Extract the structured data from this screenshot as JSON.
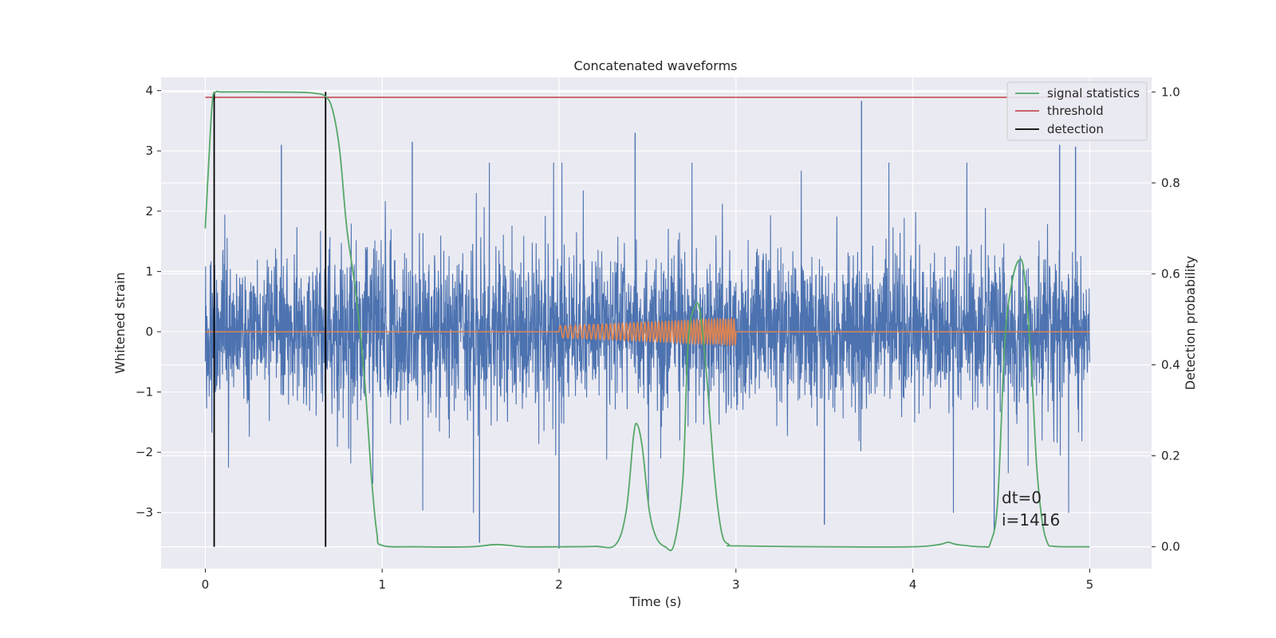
{
  "chart_data": {
    "type": "line",
    "title": "Concatenated waveforms",
    "xlabel": "Time (s)",
    "ylabel": "Whitened strain",
    "y2label": "Detection probability",
    "xlim": [
      -0.25,
      5.35
    ],
    "ylim": [
      -3.93,
      4.22
    ],
    "y2lim": [
      -0.048,
      1.032
    ],
    "xticks": [
      "0",
      "1",
      "2",
      "3",
      "4",
      "5"
    ],
    "xtick_values": [
      0,
      1,
      2,
      3,
      4,
      5
    ],
    "yticks": [
      "−3",
      "−2",
      "−1",
      "0",
      "1",
      "2",
      "3",
      "4"
    ],
    "ytick_values": [
      -3,
      -2,
      -1,
      0,
      1,
      2,
      3,
      4
    ],
    "y2ticks": [
      "0.0",
      "0.2",
      "0.4",
      "0.6",
      "0.8",
      "1.0"
    ],
    "y2tick_values": [
      0.0,
      0.2,
      0.4,
      0.6,
      0.8,
      1.0
    ],
    "grid": true,
    "legend_position": "top-right",
    "colors": {
      "strain": "#4c72b0",
      "template": "#dd8452",
      "signal_statistics": "#55a868",
      "threshold": "#c44e52",
      "detection": "#000000",
      "background": "#eaeaf2",
      "grid": "#ffffff"
    },
    "series": [
      {
        "name": "",
        "role": "strain",
        "axis": "left",
        "description_range": {
          "x": [
            0,
            5
          ],
          "typical_band": [
            -1.5,
            1.5
          ],
          "peaks": [
            [
              0.43,
              3.1
            ],
            [
              1.17,
              3.15
            ],
            [
              2.43,
              3.3
            ],
            [
              3.71,
              3.83
            ],
            [
              4.83,
              3.1
            ],
            [
              4.92,
              3.07
            ],
            [
              1.55,
              -3.5
            ],
            [
              2.0,
              -3.6
            ],
            [
              3.5,
              -3.2
            ],
            [
              4.46,
              -3.3
            ]
          ]
        }
      },
      {
        "name": "",
        "role": "template",
        "axis": "left",
        "x_range": [
          2.0,
          3.0
        ],
        "amplitude_start": 0.1,
        "amplitude_end": 0.22
      },
      {
        "name": "signal statistics",
        "axis": "right",
        "x": [
          0.0,
          0.02,
          0.04,
          0.06,
          0.1,
          0.3,
          0.55,
          0.62,
          0.68,
          0.72,
          0.76,
          0.8,
          0.85,
          0.9,
          0.94,
          0.97,
          1.0,
          1.2,
          1.5,
          1.65,
          1.8,
          2.0,
          2.2,
          2.32,
          2.38,
          2.42,
          2.44,
          2.47,
          2.51,
          2.55,
          2.6,
          2.65,
          2.7,
          2.73,
          2.77,
          2.8,
          2.84,
          2.88,
          2.92,
          2.96,
          3.0,
          3.5,
          4.0,
          4.15,
          4.2,
          4.25,
          4.4,
          4.44,
          4.48,
          4.52,
          4.56,
          4.6,
          4.63,
          4.67,
          4.7,
          4.73,
          4.76,
          4.8,
          5.0
        ],
        "values": [
          0.7,
          0.85,
          0.98,
          1.0,
          1.0,
          1.0,
          0.999,
          0.997,
          0.99,
          0.96,
          0.87,
          0.7,
          0.56,
          0.37,
          0.15,
          0.03,
          0.003,
          0.0,
          0.0,
          0.005,
          0.0,
          0.0,
          0.001,
          0.005,
          0.08,
          0.24,
          0.27,
          0.22,
          0.08,
          0.02,
          0.0,
          0.005,
          0.15,
          0.45,
          0.53,
          0.51,
          0.35,
          0.15,
          0.03,
          0.005,
          0.002,
          0.0,
          0.0,
          0.005,
          0.01,
          0.005,
          0.0,
          0.01,
          0.1,
          0.45,
          0.58,
          0.63,
          0.6,
          0.4,
          0.18,
          0.06,
          0.01,
          0.001,
          0.0
        ]
      },
      {
        "name": "threshold",
        "axis": "right",
        "x": [
          0,
          5
        ],
        "values": [
          0.988,
          0.988
        ]
      },
      {
        "name": "detection",
        "axis": "right",
        "x": [
          0.05,
          0.68
        ],
        "range": [
          0.0,
          1.0
        ]
      }
    ],
    "annotations": [
      "dt=0",
      "i=1416"
    ]
  }
}
